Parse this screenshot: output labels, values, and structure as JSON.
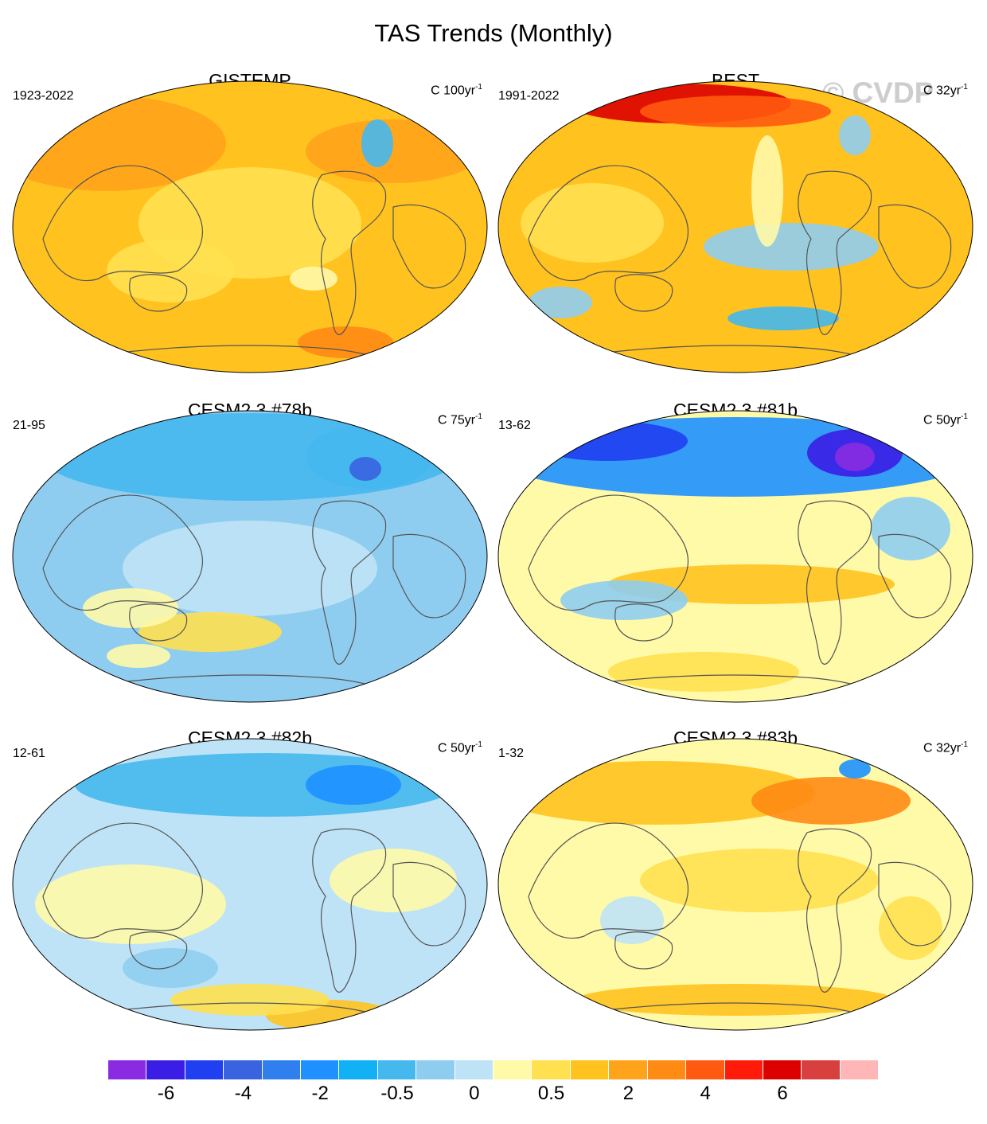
{
  "figure_title": "TAS Trends (Monthly)",
  "watermark": "© CVDP",
  "panels": [
    {
      "title": "GISTEMP",
      "left_label": "1923-2022",
      "units": "C 100yr",
      "exp": "-1",
      "palette": "warm"
    },
    {
      "title": "BEST",
      "left_label": "1991-2022",
      "units": "C 32yr",
      "exp": "-1",
      "palette": "warm2"
    },
    {
      "title": "CESM2.3 #78b",
      "left_label": "21-95",
      "units": "C 75yr",
      "exp": "-1",
      "palette": "cool"
    },
    {
      "title": "CESM2.3 #81b",
      "left_label": "13-62",
      "units": "C 50yr",
      "exp": "-1",
      "palette": "mixed"
    },
    {
      "title": "CESM2.3 #82b",
      "left_label": "12-61",
      "units": "C 50yr",
      "exp": "-1",
      "palette": "cool2"
    },
    {
      "title": "CESM2.3 #83b",
      "left_label": "1-32",
      "units": "C 32yr",
      "exp": "-1",
      "palette": "warm3"
    }
  ],
  "colorbar": {
    "colors": [
      "#8a2be2",
      "#3a1ee6",
      "#1f3ff0",
      "#3a63e0",
      "#2f7fef",
      "#1e90ff",
      "#12b0f5",
      "#45b8ee",
      "#8fcdf0",
      "#bfe3f6",
      "#fffaa8",
      "#ffe050",
      "#ffc21f",
      "#ffa31a",
      "#ff8a14",
      "#ff5a10",
      "#ff1a0a",
      "#dd0000",
      "#d84040",
      "#ffb6b6"
    ],
    "labels": [
      "-6",
      "-4",
      "-2",
      "-0.5",
      "0",
      "0.5",
      "2",
      "4",
      "6"
    ],
    "label_boundaries": [
      1,
      3,
      5,
      7,
      9,
      11,
      13,
      15,
      17
    ]
  }
}
